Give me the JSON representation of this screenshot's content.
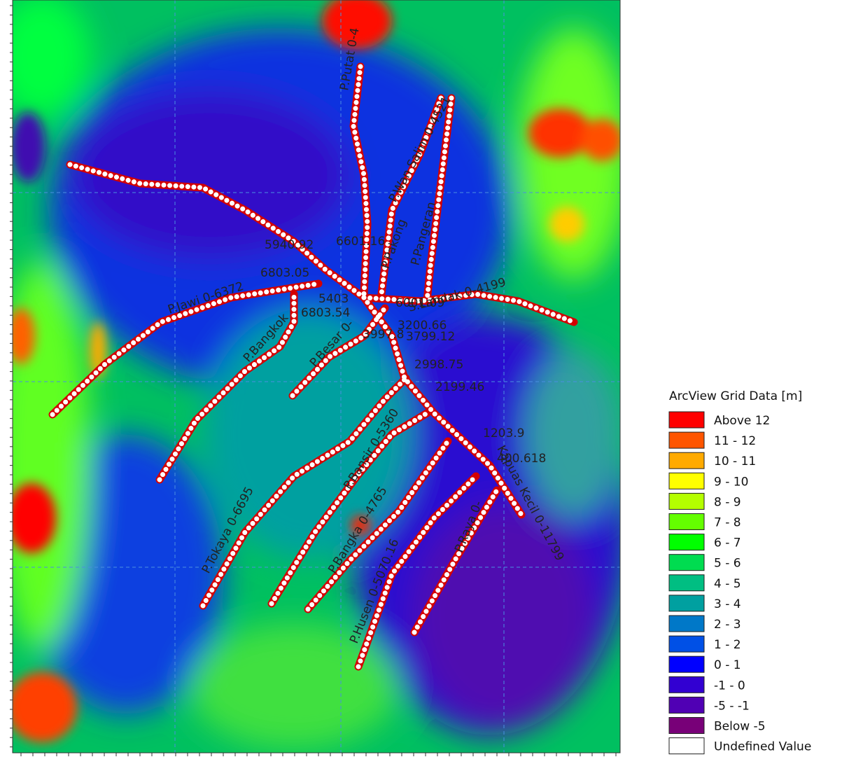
{
  "legend": {
    "title": "ArcView Grid Data [m]",
    "items": [
      {
        "label": "Above 12",
        "color": "#ff0000"
      },
      {
        "label": "11 - 12",
        "color": "#ff5500"
      },
      {
        "label": "10 - 11",
        "color": "#ffaa00"
      },
      {
        "label": "9 - 10",
        "color": "#ffff00"
      },
      {
        "label": "8 - 9",
        "color": "#b4ff00"
      },
      {
        "label": "7 - 8",
        "color": "#64ff00"
      },
      {
        "label": "6 - 7",
        "color": "#00ff00"
      },
      {
        "label": "5 - 6",
        "color": "#00dc50"
      },
      {
        "label": "4 - 5",
        "color": "#00be82"
      },
      {
        "label": "3 - 4",
        "color": "#00a0a0"
      },
      {
        "label": "2 - 3",
        "color": "#0078c8"
      },
      {
        "label": "1 - 2",
        "color": "#0050e6"
      },
      {
        "label": "0 - 1",
        "color": "#0000ff"
      },
      {
        "label": "-1 - 0",
        "color": "#3200d2"
      },
      {
        "label": "-5 - -1",
        "color": "#5000b4"
      },
      {
        "label": "Below -5",
        "color": "#780078"
      },
      {
        "label": "Undefined Value",
        "color": "#ffffff"
      }
    ]
  },
  "river_labels": [
    "P.Putat 0-4",
    "P.Wan Salim 0-4521",
    "P.Pakong",
    "P.Pangeran",
    "P.Jawi 0-6372",
    "S.Landak 0-4199",
    "P.Bangkok",
    "P.Besar 0-",
    "P.Bansir 0-5360",
    "P.Tokaya 0-6695",
    "P.Bangka 0-4765",
    "P.Husen 0-5070.16",
    "P.Raya 0-",
    "Kapuas Kecil 0-11799"
  ],
  "chainage_labels": [
    "5940.92",
    "6601.16",
    "6803.05",
    "5403",
    "6803.54",
    "6001.09",
    "3200.66",
    "3997.8",
    "3799.12",
    "2998.75",
    "2199.46",
    "1203.9",
    "400.618"
  ]
}
